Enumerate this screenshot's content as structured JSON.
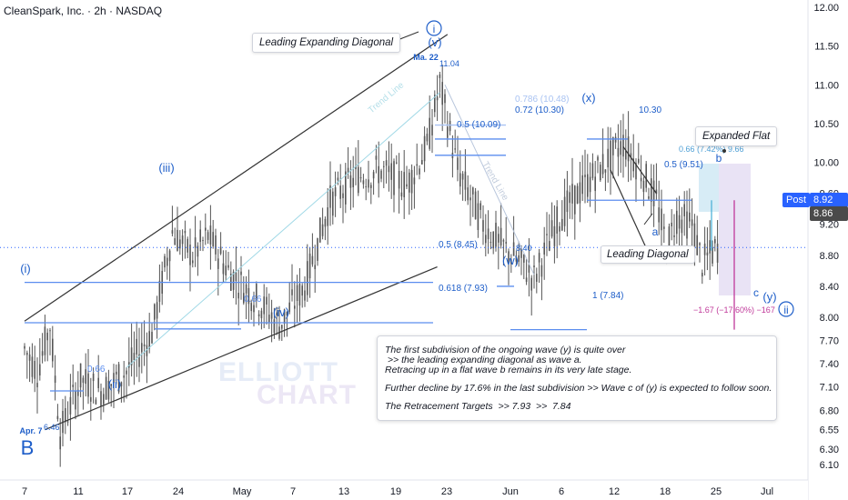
{
  "symbol_title": "CleanSpark, Inc. · 2h · NASDAQ",
  "watermark": {
    "line1": "ELLIOTT",
    "line2": "CHART"
  },
  "callouts": {
    "leading_expanding_diagonal": "Leading Expanding Diagonal",
    "expanded_flat": "Expanded Flat",
    "leading_diagonal": "Leading Diagonal"
  },
  "note": {
    "line1": "The first subdivision of the ongoing wave (y) is quite over",
    "line2": " >> the leading expanding diagonal as wave a.",
    "line3": "Retracing up in a flat wave b remains in its very late stage.",
    "line4": "Further decline by 17.6% in the last subdivision >> Wave c of (y) is expected to follow soon.",
    "line5": "The Retracement Targets  >> 7.93  >>  7.84"
  },
  "price_tags": {
    "post_label": "Post",
    "post_price": "8.92",
    "last_price": "8.86"
  },
  "colors": {
    "wave_blue": "#1e5ec9",
    "level_blue": "#5b8def",
    "candles": "#555555",
    "projection_purple": "#c0399a",
    "projection_fill": "#e9e3f5",
    "rise_fill": "#d7ecf6",
    "axis_text": "#131722"
  },
  "chart_data": {
    "type": "candlestick",
    "timeframe": "2h",
    "y_axis": {
      "position": "right",
      "ticks": [
        6.1,
        6.3,
        6.55,
        6.8,
        7.1,
        7.4,
        7.7,
        8.0,
        8.4,
        8.8,
        9.2,
        9.6,
        10.0,
        10.5,
        11.0,
        11.5,
        12.0
      ]
    },
    "ylim": [
      6.0,
      12.1
    ],
    "x_axis": {
      "tick_labels": [
        "7",
        "11",
        "17",
        "24",
        "May",
        "7",
        "13",
        "19",
        "23",
        "Jun",
        "6",
        "12",
        "18",
        "25",
        "Jul"
      ]
    },
    "price_path": [
      {
        "i": 0,
        "p": 7.6
      },
      {
        "i": 5,
        "p": 7.3
      },
      {
        "i": 10,
        "p": 7.9
      },
      {
        "i": 14,
        "p": 6.5
      },
      {
        "i": 22,
        "p": 7.2
      },
      {
        "i": 30,
        "p": 7.05
      },
      {
        "i": 40,
        "p": 7.3
      },
      {
        "i": 50,
        "p": 7.8
      },
      {
        "i": 58,
        "p": 9.1
      },
      {
        "i": 66,
        "p": 8.8
      },
      {
        "i": 72,
        "p": 9.05
      },
      {
        "i": 80,
        "p": 8.6
      },
      {
        "i": 92,
        "p": 8.2
      },
      {
        "i": 100,
        "p": 7.9
      },
      {
        "i": 110,
        "p": 8.4
      },
      {
        "i": 120,
        "p": 9.5
      },
      {
        "i": 130,
        "p": 9.8
      },
      {
        "i": 140,
        "p": 9.9
      },
      {
        "i": 150,
        "p": 9.7
      },
      {
        "i": 158,
        "p": 10.2
      },
      {
        "i": 163,
        "p": 11.0
      },
      {
        "i": 170,
        "p": 9.9
      },
      {
        "i": 180,
        "p": 9.2
      },
      {
        "i": 188,
        "p": 8.9
      },
      {
        "i": 195,
        "p": 8.7
      },
      {
        "i": 200,
        "p": 8.5
      },
      {
        "i": 210,
        "p": 9.3
      },
      {
        "i": 220,
        "p": 9.7
      },
      {
        "i": 228,
        "p": 10.0
      },
      {
        "i": 235,
        "p": 10.25
      },
      {
        "i": 242,
        "p": 9.9
      },
      {
        "i": 248,
        "p": 9.5
      },
      {
        "i": 252,
        "p": 8.9
      },
      {
        "i": 256,
        "p": 9.3
      },
      {
        "i": 262,
        "p": 9.2
      },
      {
        "i": 266,
        "p": 8.7
      },
      {
        "i": 272,
        "p": 8.9
      }
    ],
    "levels": [
      {
        "label": "0.786 (10.48)",
        "value": 10.48
      },
      {
        "label": "0.72 (10.30)",
        "value": 10.3
      },
      {
        "label": "0.5 (10.09)",
        "value": 10.09
      },
      {
        "label": "0.5 (8.45)",
        "value": 8.45
      },
      {
        "label": "0.618 (7.93)",
        "value": 7.93
      },
      {
        "label": "0.66",
        "value": 7.85
      },
      {
        "label": "0.66",
        "value": 7.05
      },
      {
        "label": "1 (7.84)",
        "value": 7.84
      },
      {
        "label": "0.5 (9.51)",
        "value": 9.51
      },
      {
        "label": "10.30",
        "value": 10.3
      },
      {
        "label": "0.66 (7.42%) 9.66",
        "value": 9.66
      },
      {
        "label": "−1.67 (−17.60%) −167",
        "value": 7.7
      }
    ],
    "wave_labels": [
      "(i)",
      "(ii)",
      "(iii)",
      "(iv)",
      "(v)",
      "i",
      "(w)",
      "(x)",
      "(y)",
      "a",
      "b",
      "c",
      "ii",
      "B"
    ],
    "price_annotations": [
      {
        "label": "Ma. 22",
        "value": 11.04,
        "text": "11.04"
      },
      {
        "label": "Apr. 7",
        "value": 6.46,
        "text": "6.46"
      },
      {
        "label": "",
        "value": 8.4,
        "text": "8.40"
      }
    ],
    "trend_line_labels": [
      "Trend Line",
      "Trend Line"
    ]
  }
}
